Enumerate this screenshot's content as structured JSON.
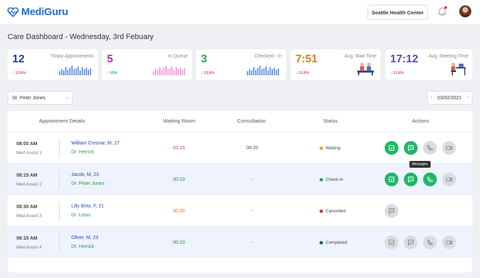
{
  "header": {
    "logo_text": "MediGuru",
    "center_select": "Seattle Health Center"
  },
  "page": {
    "title": "Care Dashboard - Wednesday, 3rd Febuary"
  },
  "stats": [
    {
      "value": "12",
      "label": "Today Appointments",
      "delta": "13.8%",
      "trend": "down",
      "color": "#1f3f99",
      "bar_color": "#6d9ee8"
    },
    {
      "value": "5",
      "label": "In Queue",
      "delta": "10%",
      "trend": "up",
      "color": "#b02cc1",
      "bar_color": "#f2a6d8"
    },
    {
      "value": "3",
      "label": "Checked - In",
      "delta": "13.8%",
      "trend": "down",
      "color": "#22a04a",
      "bar_color": "#6d9ee8"
    },
    {
      "value": "7:51",
      "label": "Avg. Wait Time",
      "delta": "13.8%",
      "trend": "down",
      "color": "#e07a1f"
    },
    {
      "value": "17:12",
      "label": "Avg. Meeting Time",
      "delta": "13.8%",
      "trend": "down",
      "color": "#5b4aa8"
    }
  ],
  "filters": {
    "doctor": "Dr. Peter Jones",
    "date": "03/02/2021"
  },
  "table": {
    "headers": [
      "Appointment Details",
      "Waiting Room",
      "Consultation",
      "Status",
      "Actions"
    ],
    "tooltip": "Messages",
    "rows": [
      {
        "time": "08:00 AM",
        "assist": "Med Assist 1",
        "patient": "William Cresnar, M, 27",
        "doctor": "Dr. Herrick",
        "wait": "01:15",
        "wait_color": "#c0392b",
        "consult": "06:20",
        "status": "Waiting",
        "status_color": "#f0a020"
      },
      {
        "time": "08:15 AM",
        "assist": "Med Assist 2",
        "patient": "Jacob, M, 23",
        "doctor": "Dr. Peter Jones",
        "wait": "00:10",
        "wait_color": "#2a8a3a",
        "consult": "-",
        "status": "Check-in",
        "status_color": "#1fa84a"
      },
      {
        "time": "08:30 AM",
        "assist": "Med Assist 3",
        "patient": "Lilly Brito, F, 21",
        "doctor": "Dr. Lotus",
        "wait": "00:30",
        "wait_color": "#e07a1f",
        "consult": "-",
        "status": "Cancelled",
        "status_color": "#d93030"
      },
      {
        "time": "08:15 AM",
        "assist": "Med Assist 4",
        "patient": "Oliver, M, 23",
        "doctor": "Dr. Herrick",
        "wait": "00:10",
        "wait_color": "#2a8a3a",
        "consult": "-",
        "status": "Completed",
        "status_color": "#126b4a"
      }
    ]
  }
}
